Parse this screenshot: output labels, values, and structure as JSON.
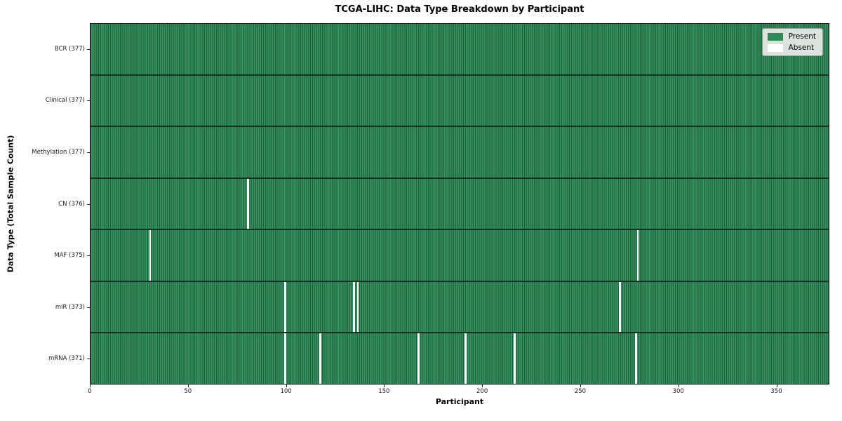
{
  "chart_data": {
    "type": "heatmap",
    "title": "TCGA-LIHC: Data Type Breakdown by Participant",
    "xlabel": "Participant",
    "ylabel": "Data Type (Total Sample Count)",
    "xlim": [
      0,
      377
    ],
    "x_ticks": [
      0,
      50,
      100,
      150,
      200,
      250,
      300,
      350
    ],
    "legend": [
      {
        "label": "Present",
        "color": "#2e8b57"
      },
      {
        "label": "Absent",
        "color": "#ffffff"
      }
    ],
    "legend_position": "upper right",
    "grid": false,
    "rows": [
      {
        "label": "BCR",
        "total": 377,
        "tick_label": "BCR (377)",
        "absent_participants": []
      },
      {
        "label": "Clinical",
        "total": 377,
        "tick_label": "Clinical (377)",
        "absent_participants": []
      },
      {
        "label": "Methylation",
        "total": 377,
        "tick_label": "Methylation (377)",
        "absent_participants": []
      },
      {
        "label": "CN",
        "total": 376,
        "tick_label": "CN (376)",
        "absent_participants": [
          80
        ]
      },
      {
        "label": "MAF",
        "total": 375,
        "tick_label": "MAF (375)",
        "absent_participants": [
          30,
          279
        ]
      },
      {
        "label": "miR",
        "total": 373,
        "tick_label": "miR (373)",
        "absent_participants": [
          99,
          134,
          136,
          270
        ]
      },
      {
        "label": "mRNA",
        "total": 371,
        "tick_label": "mRNA (371)",
        "absent_participants": [
          99,
          117,
          167,
          191,
          216,
          278
        ]
      }
    ],
    "colors": {
      "present_fill": "#35915f",
      "cell_edge": "#1f5c3a",
      "row_separator": "#14321f",
      "absent": "#ffffff",
      "legend_present": "#2e8b57"
    }
  }
}
